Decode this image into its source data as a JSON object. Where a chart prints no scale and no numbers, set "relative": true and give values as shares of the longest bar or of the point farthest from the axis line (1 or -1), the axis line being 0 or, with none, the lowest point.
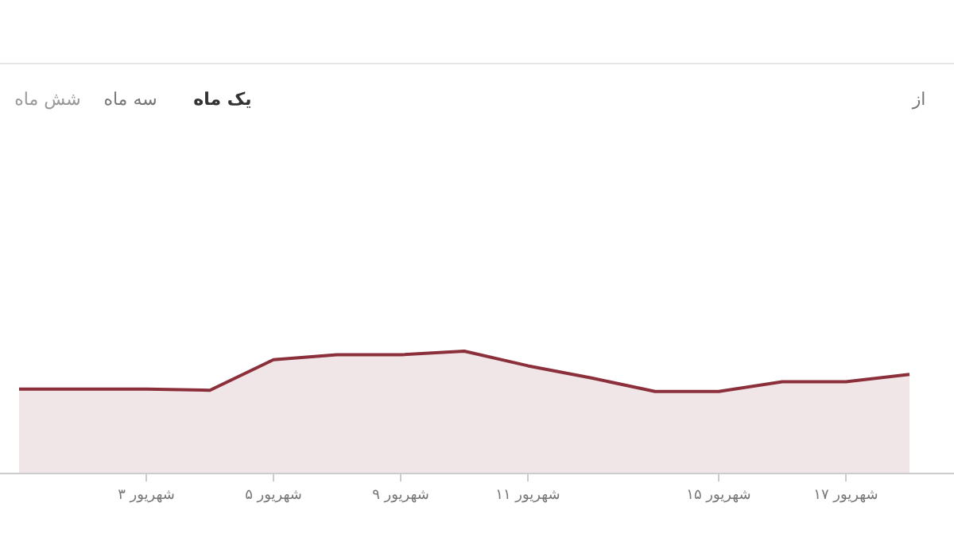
{
  "chart_data": {
    "type": "area",
    "relative": true,
    "annotations": [
      "یک ماه",
      "سه ماه",
      "شش ماه",
      "از"
    ],
    "categories": [
      null,
      null,
      "شهریور ۳",
      null,
      "شهریور ۵",
      null,
      "شهریور ۹",
      null,
      "شهریور ۱۱",
      null,
      null,
      "شهریور ۱۵",
      null,
      "شهریور ۱۷",
      null
    ],
    "series": [
      {
        "color": "#8b2f3a",
        "values": [
          0.69,
          0.69,
          0.69,
          0.68,
          0.93,
          0.97,
          0.97,
          1,
          0.88,
          0.78,
          0.67,
          0.67,
          0.75,
          0.75,
          0.81
        ]
      }
    ]
  }
}
